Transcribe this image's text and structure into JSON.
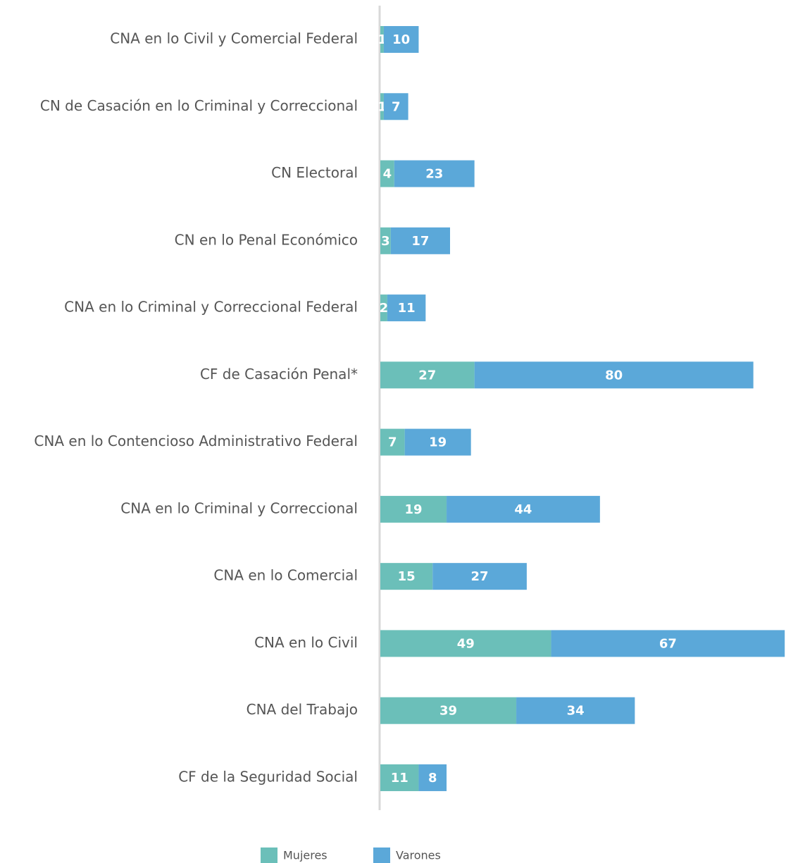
{
  "chart_data": {
    "type": "bar",
    "orientation": "horizontal",
    "stacked": true,
    "categories": [
      "CNA en lo Civil y Comercial Federal",
      "CN de Casación en lo Criminal y Correccional",
      "CN Electoral",
      "CN en lo Penal Económico",
      "CNA en lo Criminal y Correccional Federal",
      "CF de Casación Penal*",
      "CNA en lo Contencioso Administrativo Federal",
      "CNA en lo Criminal y Correccional",
      "CNA en lo Comercial",
      "CNA en lo Civil",
      "CNA del Trabajo",
      "CF de la Seguridad Social"
    ],
    "series": [
      {
        "name": "Mujeres",
        "color": "#6bbfb9",
        "values": [
          1,
          1,
          4,
          3,
          2,
          27,
          7,
          19,
          15,
          49,
          39,
          11
        ]
      },
      {
        "name": "Varones",
        "color": "#5ba8d9",
        "values": [
          10,
          7,
          23,
          17,
          11,
          80,
          19,
          44,
          27,
          67,
          34,
          8
        ]
      }
    ],
    "legend": "bottom"
  }
}
